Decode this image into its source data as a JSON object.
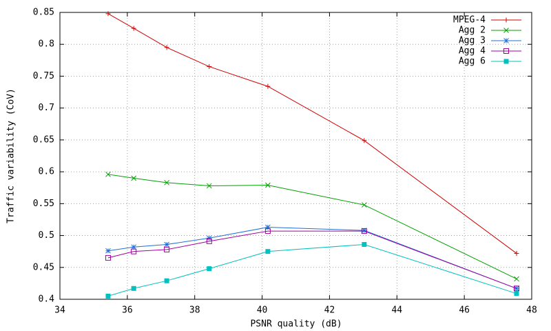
{
  "chart_data": {
    "type": "line",
    "x_label": "PSNR quality (dB)",
    "y_label": "Traffic variability (CoV)",
    "x": [
      35.43,
      36.19,
      37.17,
      38.43,
      40.17,
      43.03,
      47.55
    ],
    "series": [
      {
        "name": "MPEG-4",
        "color": "#d00000",
        "marker": "plus",
        "values": [
          0.848,
          0.825,
          0.795,
          0.765,
          0.734,
          0.649,
          0.472
        ]
      },
      {
        "name": "Agg 2",
        "color": "#00a000",
        "marker": "cross",
        "values": [
          0.596,
          0.59,
          0.583,
          0.578,
          0.579,
          0.548,
          0.432
        ]
      },
      {
        "name": "Agg 3",
        "color": "#1f6fd6",
        "marker": "star",
        "values": [
          0.476,
          0.482,
          0.486,
          0.496,
          0.513,
          0.508,
          0.417
        ]
      },
      {
        "name": "Agg 4",
        "color": "#a000a0",
        "marker": "open-square",
        "values": [
          0.465,
          0.475,
          0.478,
          0.491,
          0.507,
          0.507,
          0.417
        ]
      },
      {
        "name": "Agg 6",
        "color": "#00c0c0",
        "marker": "filled-square",
        "values": [
          0.405,
          0.417,
          0.429,
          0.448,
          0.475,
          0.486,
          0.409
        ]
      }
    ],
    "xlim": [
      34,
      48
    ],
    "xticks": [
      34,
      36,
      38,
      40,
      42,
      44,
      46,
      48
    ],
    "ylim": [
      0.4,
      0.85
    ],
    "yticks": [
      0.4,
      0.45,
      0.5,
      0.55,
      0.6,
      0.65,
      0.7,
      0.75,
      0.8,
      0.85
    ],
    "grid": true,
    "legend": "top-right"
  }
}
